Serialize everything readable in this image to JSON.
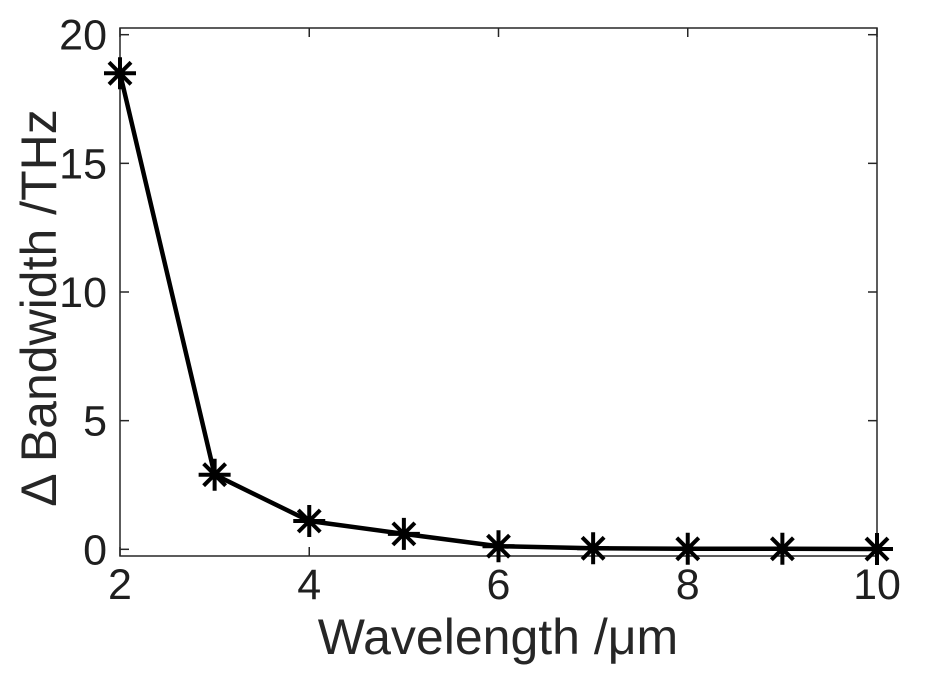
{
  "figure": {
    "background": "#ffffff",
    "axes_color": "#262626",
    "text_color": "#1f1f1f"
  },
  "chart_data": {
    "type": "line",
    "title": "",
    "xlabel": "Wavelength /μm",
    "ylabel": "Δ Bandwidth /THz",
    "x": [
      2,
      3,
      4,
      5,
      6,
      7,
      8,
      9,
      10
    ],
    "series": [
      {
        "name": "",
        "values": [
          18.5,
          2.9,
          1.1,
          0.6,
          0.12,
          0.04,
          0.02,
          0.02,
          0.01
        ],
        "color": "#000000",
        "marker": "asterisk",
        "line_style": "solid"
      }
    ],
    "xlim": [
      2,
      10
    ],
    "ylim": [
      0,
      20
    ],
    "xticks": [
      "2",
      "4",
      "6",
      "8",
      "10"
    ],
    "xtick_values": [
      2,
      4,
      6,
      8,
      10
    ],
    "yticks": [
      "0",
      "5",
      "10",
      "15",
      "20"
    ],
    "ytick_values": [
      0,
      5,
      10,
      15,
      20
    ],
    "grid": false,
    "legend": "none",
    "box": true,
    "tick_direction": "in"
  }
}
